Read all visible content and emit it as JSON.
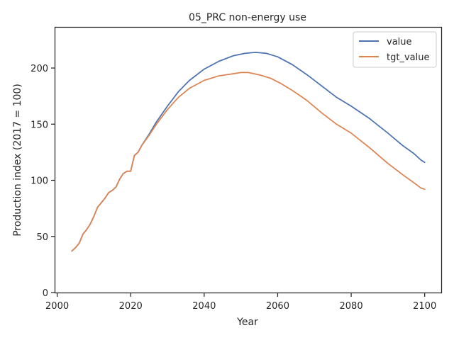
{
  "chart_data": {
    "type": "line",
    "title": "05_PRC non-energy use",
    "xlabel": "Year",
    "ylabel": "Production index (2017 = 100)",
    "xlim": [
      1999.5,
      2104.5
    ],
    "ylim": [
      0,
      236
    ],
    "xticks": [
      "2000",
      "2020",
      "2040",
      "2060",
      "2080",
      "2100"
    ],
    "yticks": [
      "0",
      "50",
      "100",
      "150",
      "200"
    ],
    "grid": false,
    "legend_position": "top-right",
    "series": [
      {
        "name": "value",
        "color": "#4c72b0",
        "x": [
          2004,
          2005,
          2006,
          2007,
          2008,
          2009,
          2010,
          2011,
          2012,
          2013,
          2014,
          2015,
          2016,
          2017,
          2018,
          2019,
          2020,
          2021,
          2022,
          2023,
          2025,
          2027,
          2030,
          2033,
          2036,
          2040,
          2044,
          2048,
          2051,
          2054,
          2057,
          2060,
          2064,
          2068,
          2072,
          2076,
          2080,
          2085,
          2090,
          2094,
          2097,
          2099,
          2100
        ],
        "y": [
          37,
          40,
          44,
          52,
          56,
          61,
          68,
          76,
          80,
          84,
          89,
          91,
          94,
          101,
          106,
          108,
          108,
          122,
          125,
          131,
          141,
          152,
          166,
          179,
          189,
          199,
          206,
          211,
          213,
          214,
          213,
          210,
          203,
          194,
          184,
          174,
          166,
          155,
          142,
          131,
          124,
          118,
          116
        ]
      },
      {
        "name": "tgt_value",
        "color": "#dd8452",
        "x": [
          2004,
          2005,
          2006,
          2007,
          2008,
          2009,
          2010,
          2011,
          2012,
          2013,
          2014,
          2015,
          2016,
          2017,
          2018,
          2019,
          2020,
          2021,
          2022,
          2023,
          2025,
          2027,
          2030,
          2033,
          2036,
          2040,
          2044,
          2048,
          2050,
          2052,
          2055,
          2058,
          2061,
          2064,
          2068,
          2072,
          2076,
          2080,
          2085,
          2090,
          2094,
          2097,
          2099,
          2100
        ],
        "y": [
          37,
          40,
          44,
          52,
          56,
          61,
          68,
          76,
          80,
          84,
          89,
          91,
          94,
          101,
          106,
          108,
          108,
          122,
          125,
          131,
          140,
          150,
          163,
          174,
          182,
          189,
          193,
          195,
          196,
          196,
          194,
          191,
          186,
          180,
          171,
          160,
          150,
          142,
          129,
          115,
          105,
          98,
          93,
          92
        ]
      }
    ]
  }
}
